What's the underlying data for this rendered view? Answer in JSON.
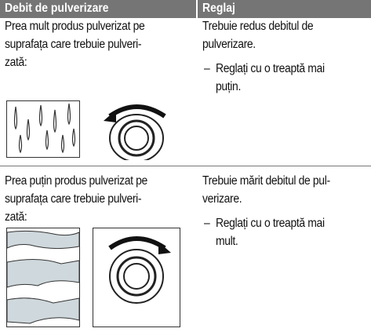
{
  "table": {
    "headers": [
      "Debit de pulverizare",
      "Reglaj"
    ],
    "rows": [
      {
        "problem": [
          "Prea mult produs pulverizat pe",
          "suprafața care trebuie pulveri-",
          "zată:"
        ],
        "remedy": [
          "Trebuie redus debitul de",
          "pulverizare."
        ],
        "bullet": "–",
        "step": [
          "Reglați cu o treaptă mai",
          "puțin."
        ]
      },
      {
        "problem": [
          "Prea puțin produs pulverizat pe",
          "suprafața care trebuie pulveri-",
          "zată:"
        ],
        "remedy": [
          "Trebuie mărit debitul de pul-",
          "verizare."
        ],
        "bullet": "–",
        "step": [
          "Reglați cu o treaptă mai",
          "mult."
        ]
      }
    ]
  }
}
